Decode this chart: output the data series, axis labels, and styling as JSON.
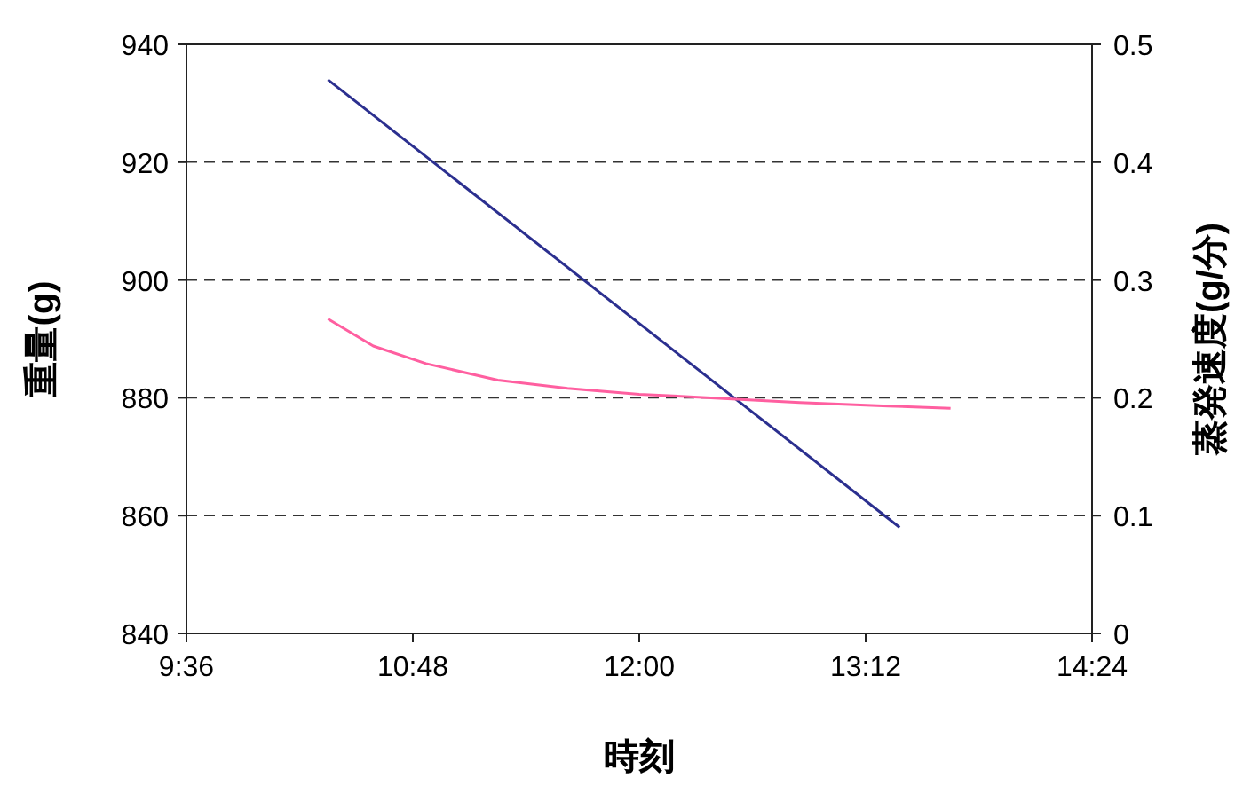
{
  "chart_data": {
    "type": "line",
    "xlabel": "時刻",
    "ylabel": "重量(g)",
    "y2label": "蒸発速度(g/分)",
    "xlim": [
      9.6,
      14.4
    ],
    "xticks": [
      {
        "value": 9.6,
        "label": "9:36"
      },
      {
        "value": 10.8,
        "label": "10:48"
      },
      {
        "value": 12,
        "label": "12:00"
      },
      {
        "value": 13.2,
        "label": "13:12"
      },
      {
        "value": 14.4,
        "label": "14:24"
      }
    ],
    "ylim": [
      840,
      940
    ],
    "yticks": [
      840,
      860,
      880,
      900,
      920,
      940
    ],
    "y2lim": [
      0,
      0.5
    ],
    "y2ticks": [
      0,
      0.1,
      0.2,
      0.3,
      0.4,
      0.5
    ],
    "grid": "y",
    "marker": "none",
    "series": [
      {
        "color": "#2b2f8f",
        "x": [
          10.35,
          13.38
        ],
        "values": [
          934,
          858
        ]
      },
      {
        "color": "#ff5fa0",
        "axis": "y2",
        "x": [
          10.35,
          10.59,
          10.87,
          11.25,
          11.62,
          12.0,
          12.38,
          12.85,
          13.32,
          13.65
        ],
        "values": [
          0.267,
          0.244,
          0.229,
          0.215,
          0.208,
          0.203,
          0.2,
          0.196,
          0.193,
          0.191
        ]
      }
    ]
  }
}
